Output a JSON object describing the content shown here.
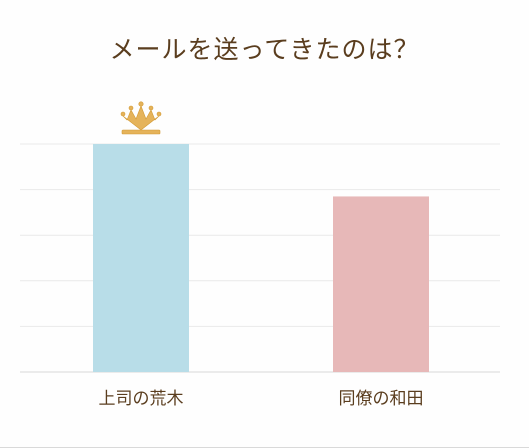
{
  "chart_data": {
    "type": "bar",
    "title": "メールを送ってきたのは？",
    "categories": [
      "上司の荒木",
      "同僚の和田"
    ],
    "values": [
      100,
      77
    ],
    "ylim": [
      0,
      100
    ],
    "grid": true,
    "colors": [
      "#b8dde8",
      "#e7b8b8"
    ],
    "winner_marker": "crown-icon"
  }
}
